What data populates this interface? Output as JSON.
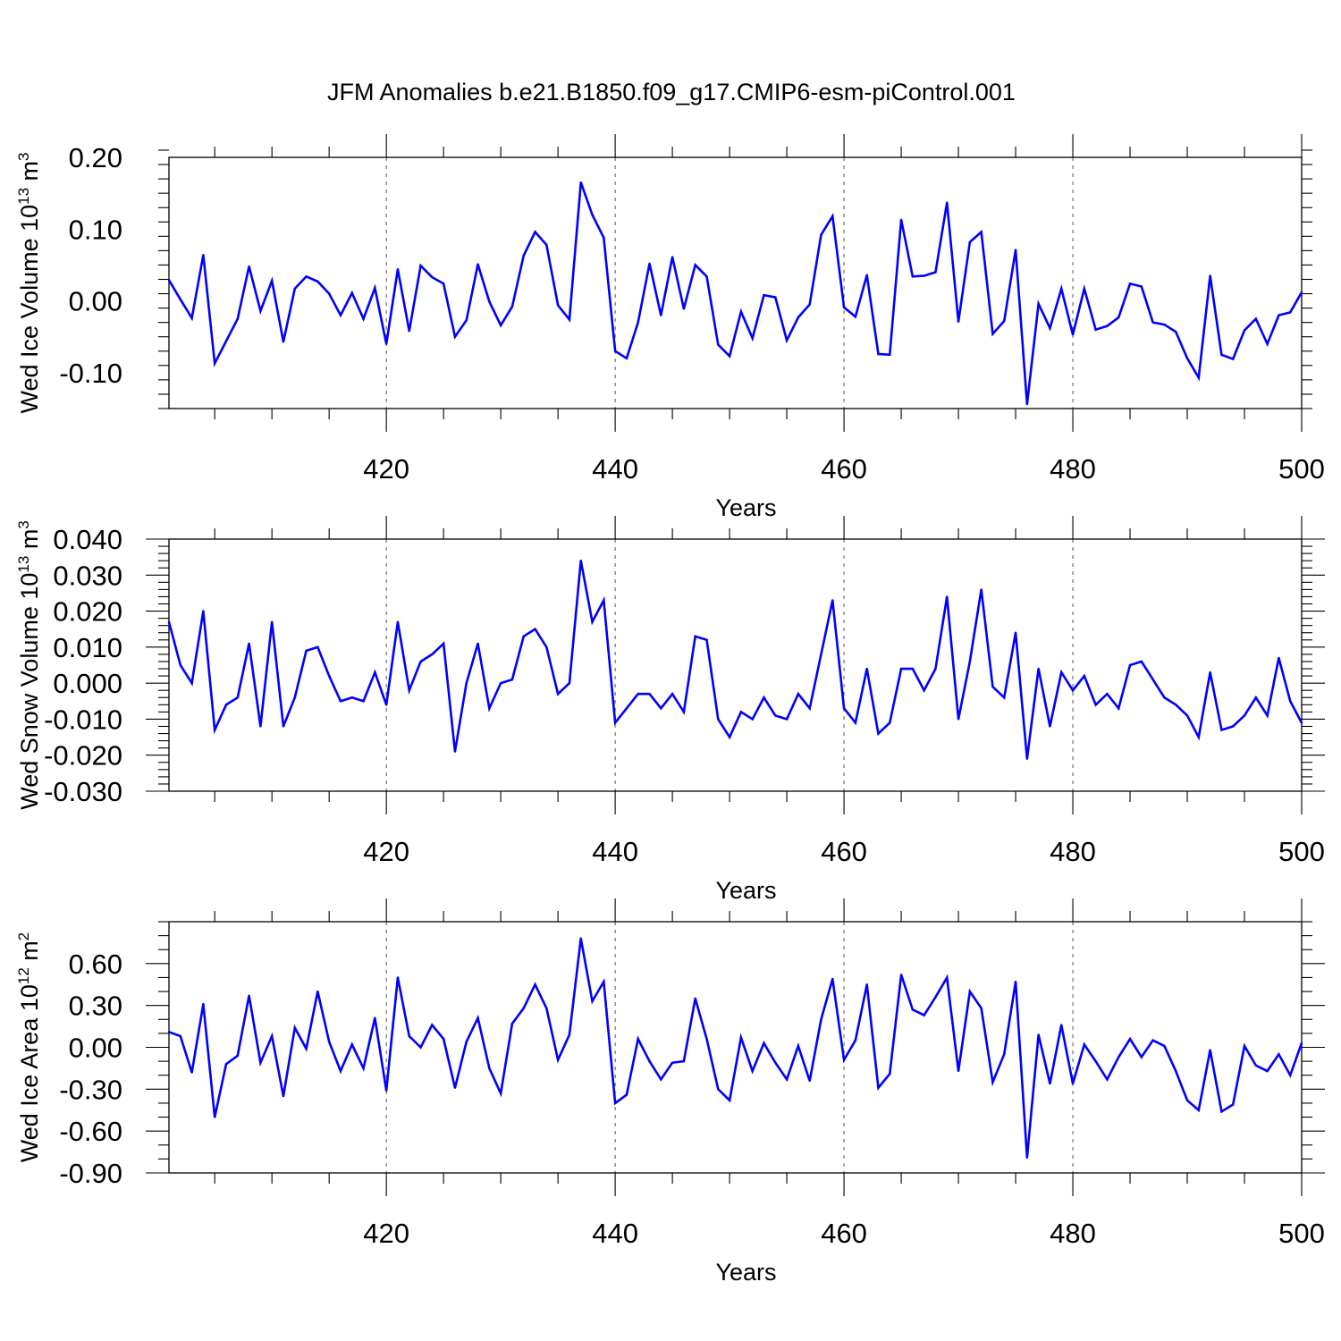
{
  "title": "JFM Anomalies b.e21.B1850.f09_g17.CMIP6-esm-piControl.001",
  "colors": {
    "line": "#0000ff",
    "axes": "#000000",
    "grid": "#555555"
  },
  "chart_data": [
    {
      "type": "line",
      "ylabel": {
        "base": "Wed Ice Volume 10",
        "exp": "13",
        "unit": " m",
        "unit_exp": "3"
      },
      "xlabel": "Years",
      "xlim": [
        401,
        500
      ],
      "ylim": [
        -0.15,
        0.2
      ],
      "x_ticks": [
        420,
        440,
        460,
        480,
        500
      ],
      "x_tick_labels": [
        "420",
        "440",
        "460",
        "480",
        "500"
      ],
      "y_ticks": [
        0.2,
        0.1,
        0.0,
        -0.1
      ],
      "y_tick_labels": [
        "0.20",
        "0.10",
        "0.00",
        "-0.10"
      ],
      "y_minor_step": 0.02,
      "series": [
        {
          "name": "Wed Ice Volume",
          "x_start": 401,
          "values": [
            0.029,
            0.002,
            -0.024,
            0.064,
            -0.087,
            -0.056,
            -0.025,
            0.048,
            -0.014,
            0.028,
            -0.057,
            0.017,
            0.034,
            0.027,
            0.01,
            -0.02,
            0.011,
            -0.025,
            0.018,
            -0.06,
            0.044,
            -0.042,
            0.049,
            0.033,
            0.024,
            -0.05,
            -0.027,
            0.051,
            -0.001,
            -0.034,
            -0.008,
            0.063,
            0.096,
            0.078,
            -0.006,
            -0.026,
            0.165,
            0.12,
            0.088,
            -0.07,
            -0.08,
            -0.03,
            0.052,
            -0.02,
            0.061,
            -0.011,
            0.05,
            0.034,
            -0.061,
            -0.077,
            -0.015,
            -0.052,
            0.008,
            0.005,
            -0.055,
            -0.023,
            -0.005,
            0.092,
            0.118,
            -0.009,
            -0.022,
            0.036,
            -0.074,
            -0.075,
            0.113,
            0.034,
            0.035,
            0.04,
            0.137,
            -0.029,
            0.082,
            0.096,
            -0.046,
            -0.028,
            0.071,
            -0.144,
            -0.004,
            -0.038,
            0.017,
            -0.047,
            0.017,
            -0.04,
            -0.035,
            -0.023,
            0.024,
            0.02,
            -0.03,
            -0.033,
            -0.043,
            -0.08,
            -0.107,
            0.035,
            -0.075,
            -0.081,
            -0.041,
            -0.025,
            -0.06,
            -0.02,
            -0.016,
            0.012
          ]
        }
      ]
    },
    {
      "type": "line",
      "ylabel": {
        "base": "Wed Snow Volume 10",
        "exp": "13",
        "unit": " m",
        "unit_exp": "3"
      },
      "xlabel": "Years",
      "xlim": [
        401,
        500
      ],
      "ylim": [
        -0.03,
        0.04
      ],
      "x_ticks": [
        420,
        440,
        460,
        480,
        500
      ],
      "x_tick_labels": [
        "420",
        "440",
        "460",
        "480",
        "500"
      ],
      "y_ticks": [
        0.04,
        0.03,
        0.02,
        0.01,
        0.0,
        -0.01,
        -0.02,
        -0.03
      ],
      "y_tick_labels": [
        "0.040",
        "0.030",
        "0.020",
        "0.010",
        "0.000",
        "-0.010",
        "-0.020",
        "-0.030"
      ],
      "y_minor_step": 0.002,
      "series": [
        {
          "name": "Wed Snow Volume",
          "x_start": 401,
          "values": [
            0.017,
            0.005,
            -0.0,
            0.02,
            -0.013,
            -0.006,
            -0.004,
            0.011,
            -0.012,
            0.017,
            -0.012,
            -0.004,
            0.009,
            0.01,
            0.002,
            -0.005,
            -0.004,
            -0.005,
            0.003,
            -0.006,
            0.017,
            -0.002,
            0.006,
            0.008,
            0.011,
            -0.019,
            0.0,
            0.011,
            -0.007,
            -0.0,
            0.001,
            0.013,
            0.015,
            0.01,
            -0.003,
            -0.0,
            0.034,
            0.017,
            0.023,
            -0.011,
            -0.007,
            -0.003,
            -0.003,
            -0.007,
            -0.003,
            -0.008,
            0.013,
            0.012,
            -0.01,
            -0.015,
            -0.008,
            -0.01,
            -0.004,
            -0.009,
            -0.01,
            -0.003,
            -0.007,
            0.008,
            0.023,
            -0.007,
            -0.011,
            0.004,
            -0.014,
            -0.011,
            0.004,
            0.004,
            -0.002,
            0.004,
            0.024,
            -0.01,
            0.006,
            0.026,
            -0.001,
            -0.004,
            0.014,
            -0.021,
            0.004,
            -0.012,
            0.003,
            -0.002,
            0.002,
            -0.006,
            -0.003,
            -0.007,
            0.005,
            0.006,
            0.001,
            -0.004,
            -0.006,
            -0.009,
            -0.015,
            0.003,
            -0.013,
            -0.012,
            -0.009,
            -0.004,
            -0.009,
            0.007,
            -0.005,
            -0.011
          ]
        }
      ]
    },
    {
      "type": "line",
      "ylabel": {
        "base": "Wed Ice Area 10",
        "exp": "12",
        "unit": " m",
        "unit_exp": "2"
      },
      "xlabel": "Years",
      "xlim": [
        401,
        500
      ],
      "ylim": [
        -0.9,
        0.9
      ],
      "x_ticks": [
        420,
        440,
        460,
        480,
        500
      ],
      "x_tick_labels": [
        "420",
        "440",
        "460",
        "480",
        "500"
      ],
      "y_ticks": [
        0.6,
        0.3,
        0.0,
        -0.3,
        -0.6,
        -0.9
      ],
      "y_tick_labels": [
        "0.60",
        "0.30",
        "0.00",
        "-0.30",
        "-0.60",
        "-0.90"
      ],
      "y_minor_step": 0.1,
      "series": [
        {
          "name": "Wed Ice Area",
          "x_start": 401,
          "values": [
            0.11,
            0.08,
            -0.18,
            0.31,
            -0.5,
            -0.12,
            -0.06,
            0.37,
            -0.11,
            0.08,
            -0.35,
            0.14,
            -0.01,
            0.4,
            0.04,
            -0.17,
            0.02,
            -0.15,
            0.21,
            -0.31,
            0.5,
            0.08,
            0.0,
            0.16,
            0.06,
            -0.29,
            0.04,
            0.21,
            -0.15,
            -0.33,
            0.17,
            0.28,
            0.45,
            0.28,
            -0.09,
            0.09,
            0.78,
            0.33,
            0.47,
            -0.4,
            -0.34,
            0.06,
            -0.1,
            -0.23,
            -0.11,
            -0.1,
            0.35,
            0.06,
            -0.3,
            -0.38,
            0.07,
            -0.17,
            0.03,
            -0.11,
            -0.23,
            0.01,
            -0.24,
            0.2,
            0.49,
            -0.09,
            0.05,
            0.45,
            -0.29,
            -0.19,
            0.52,
            0.27,
            0.23,
            0.36,
            0.5,
            -0.17,
            0.4,
            0.28,
            -0.25,
            -0.05,
            0.47,
            -0.79,
            0.09,
            -0.26,
            0.16,
            -0.26,
            0.02,
            -0.1,
            -0.23,
            -0.07,
            0.06,
            -0.07,
            0.05,
            0.01,
            -0.17,
            -0.38,
            -0.45,
            -0.02,
            -0.46,
            -0.41,
            0.01,
            -0.13,
            -0.17,
            -0.05,
            -0.2,
            0.03
          ]
        }
      ]
    }
  ]
}
